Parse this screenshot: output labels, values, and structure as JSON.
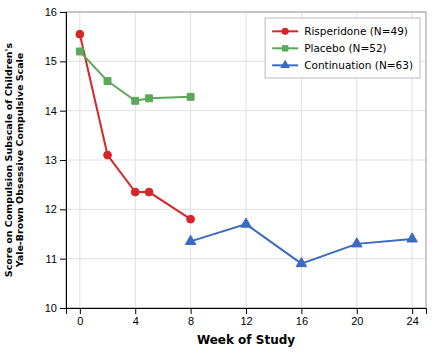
{
  "chart_data": {
    "type": "line",
    "xlabel": "Week of Study",
    "ylabel": "Score on Compulsion Subscale of Children's\nYale-Brown Obsessive Compulsive Scale",
    "series": [
      {
        "name": "Risperidone (N=49)",
        "color": "#d62728",
        "marker": "circle",
        "x": [
          0,
          2,
          4,
          5,
          8
        ],
        "values": [
          15.55,
          13.1,
          12.35,
          12.35,
          11.8
        ]
      },
      {
        "name": "Placebo (N=52)",
        "color": "#5ba85a",
        "marker": "square",
        "x": [
          0,
          2,
          4,
          5,
          8
        ],
        "values": [
          15.2,
          14.6,
          14.2,
          14.25,
          14.28
        ]
      },
      {
        "name": "Continuation (N=63)",
        "color": "#3a6bbf",
        "marker": "triangle",
        "x": [
          8,
          12,
          16,
          20,
          24
        ],
        "values": [
          11.35,
          11.7,
          10.9,
          11.3,
          11.4
        ]
      }
    ],
    "xlim": [
      -1,
      25
    ],
    "ylim": [
      10,
      16
    ],
    "xticks": [
      0,
      4,
      8,
      12,
      16,
      20,
      24
    ],
    "yticks": [
      10,
      11,
      12,
      13,
      14,
      15,
      16
    ],
    "grid": true,
    "legend": "upper right"
  }
}
